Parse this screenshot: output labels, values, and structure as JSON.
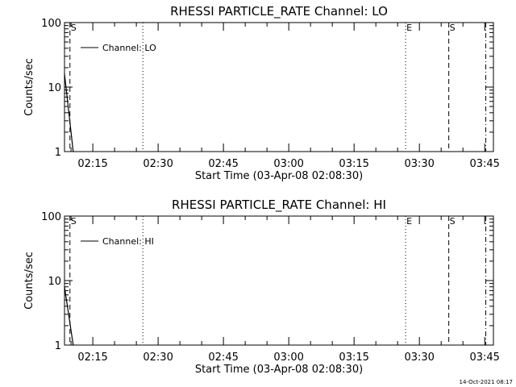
{
  "footer": {
    "timestamp": "14-Oct-2021 08:17"
  },
  "chart_data": [
    {
      "type": "line",
      "title": "RHESSI PARTICLE_RATE Channel: LO",
      "xlabel": "Start Time (03-Apr-08 02:08:30)",
      "ylabel": "Counts/sec",
      "yscale": "log",
      "ylim": [
        1,
        100
      ],
      "xlim": [
        "02:08:30",
        "03:47:00"
      ],
      "y_tick_labels": [
        "1",
        "10",
        "100"
      ],
      "x_tick_labels": [
        "02:15",
        "02:30",
        "02:45",
        "03:00",
        "03:15",
        "03:30",
        "03:45"
      ],
      "series": [
        {
          "name": "Channel: LO",
          "x": [
            "02:08:30",
            "02:10:30"
          ],
          "y": [
            16,
            1
          ]
        }
      ],
      "markers": [
        {
          "label": "S",
          "time": "02:09:45",
          "style": "dashed"
        },
        {
          "label": "",
          "time": "02:26:30",
          "style": "dotted"
        },
        {
          "label": "E",
          "time": "03:26:50",
          "style": "dotted"
        },
        {
          "label": "S",
          "time": "03:36:45",
          "style": "dashed"
        },
        {
          "label": "",
          "time": "03:45:15",
          "style": "dashdot"
        }
      ],
      "legend": "top-left",
      "grid": false
    },
    {
      "type": "line",
      "title": "RHESSI PARTICLE_RATE Channel: HI",
      "xlabel": "Start Time (03-Apr-08 02:08:30)",
      "ylabel": "Counts/sec",
      "yscale": "log",
      "ylim": [
        1,
        100
      ],
      "xlim": [
        "02:08:30",
        "03:47:00"
      ],
      "y_tick_labels": [
        "1",
        "10",
        "100"
      ],
      "x_tick_labels": [
        "02:15",
        "02:30",
        "02:45",
        "03:00",
        "03:15",
        "03:30",
        "03:45"
      ],
      "series": [
        {
          "name": "Channel: HI",
          "x": [
            "02:08:30",
            "02:10:30"
          ],
          "y": [
            8,
            1
          ]
        }
      ],
      "markers": [
        {
          "label": "S",
          "time": "02:09:45",
          "style": "dashed"
        },
        {
          "label": "",
          "time": "02:26:30",
          "style": "dotted"
        },
        {
          "label": "E",
          "time": "03:26:50",
          "style": "dotted"
        },
        {
          "label": "S",
          "time": "03:36:45",
          "style": "dashed"
        },
        {
          "label": "",
          "time": "03:45:15",
          "style": "dashdot"
        }
      ],
      "legend": "top-left",
      "grid": false
    }
  ]
}
